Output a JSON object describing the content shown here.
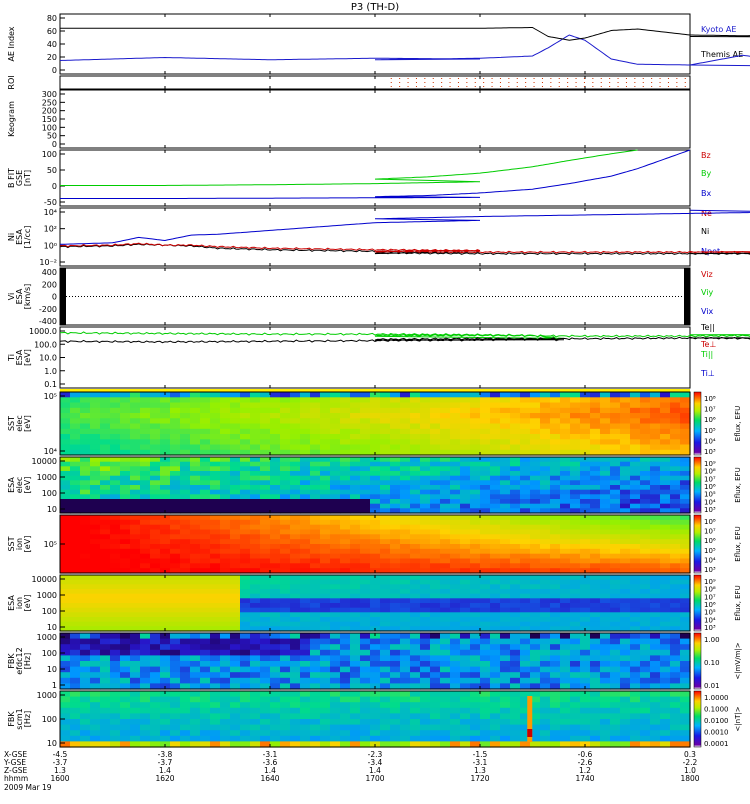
{
  "title": "P3 (TH-D)",
  "colors": {
    "kyoto": "#1a1acc",
    "themis": "#000000",
    "red": "#cc0000",
    "green": "#00cc00",
    "blue": "#0000cc",
    "black": "#000000",
    "roi": "#cc3300"
  },
  "chart_data": [
    {
      "type": "line",
      "panel": "ae",
      "ylabel": "AE Index",
      "yticks": [
        "80",
        "60",
        "40",
        "20",
        "0"
      ],
      "ylim": [
        0,
        80
      ],
      "legend": [
        {
          "name": "Kyoto AE",
          "color": "#1a1acc"
        },
        {
          "name": "Themis AE",
          "color": "#000000"
        }
      ],
      "x": [
        1600,
        1620,
        1640,
        1660,
        1680,
        1700,
        1720,
        1730,
        1733,
        1737,
        1740,
        1745,
        1750,
        1760,
        1770,
        1780,
        1790,
        1800
      ],
      "series": [
        {
          "name": "Kyoto AE",
          "values": [
            18,
            22,
            19,
            21,
            20,
            19,
            21,
            24,
            35,
            52,
            45,
            20,
            13,
            12,
            25,
            16,
            10,
            12
          ]
        },
        {
          "name": "Themis AE",
          "values": [
            61,
            61,
            61,
            61,
            61,
            61,
            61,
            62,
            50,
            45,
            48,
            58,
            60,
            52,
            51,
            52,
            49,
            50
          ]
        }
      ]
    },
    {
      "type": "scatter",
      "panel": "roi",
      "ylabel": "ROI",
      "x_start": 1703,
      "x_end": 1800
    },
    {
      "type": "line",
      "panel": "keogram",
      "ylabel": "Keogram",
      "yticks": [
        "300",
        "250",
        "200",
        "150",
        "100",
        "50",
        "0"
      ],
      "ylim": [
        0,
        300
      ]
    },
    {
      "type": "line",
      "panel": "bfield",
      "ylabel": "B FIT\nGSE\n[nT]",
      "yticks": [
        "100",
        "50",
        "0",
        "-50"
      ],
      "ylim": [
        -50,
        100
      ],
      "legend": [
        {
          "name": "Bz",
          "color": "#cc0000"
        },
        {
          "name": "By",
          "color": "#00cc00"
        },
        {
          "name": "Bx",
          "color": "#0000cc"
        }
      ],
      "x": [
        1600,
        1620,
        1640,
        1660,
        1680,
        1700,
        1710,
        1720,
        1730,
        1737,
        1745,
        1750,
        1760
      ],
      "series": [
        {
          "name": "By",
          "values": [
            5,
            5,
            7,
            10,
            15,
            22,
            28,
            38,
            55,
            72,
            90,
            100,
            null
          ]
        },
        {
          "name": "Bx",
          "values": [
            -30,
            -30,
            -29,
            -28,
            -27,
            -25,
            -22,
            -15,
            -5,
            10,
            30,
            50,
            100
          ]
        }
      ]
    },
    {
      "type": "line",
      "panel": "density",
      "ylabel": "Ni\nESA\n[1/cc]",
      "yticks": [
        "10⁴",
        "10²",
        "10⁰",
        "10⁻²"
      ],
      "ylim": [
        -2.5,
        5
      ],
      "legend": [
        {
          "name": "Ne",
          "color": "#cc0000"
        },
        {
          "name": "Ni",
          "color": "#000000"
        },
        {
          "name": "Npot",
          "color": "#0000cc"
        }
      ],
      "x": [
        1600,
        1610,
        1615,
        1620,
        1625,
        1630,
        1640,
        1650,
        1660,
        1680,
        1700,
        1720,
        1740,
        1760,
        1780,
        1800
      ],
      "series": [
        {
          "name": "Npot",
          "values": [
            0.3,
            0.5,
            1.2,
            0.8,
            1.5,
            1.6,
            2.1,
            2.6,
            3.1,
            3.4,
            3.6,
            3.9,
            4.1,
            4.3,
            4.5,
            4.7
          ]
        },
        {
          "name": "Ni",
          "values": [
            0.0,
            0.1,
            0.3,
            0.2,
            0.1,
            -0.2,
            -0.4,
            -0.5,
            -0.6,
            -0.7,
            -0.8,
            -0.9,
            -0.9,
            -0.9,
            -0.9,
            -0.9
          ]
        },
        {
          "name": "Ne",
          "values": [
            0.1,
            0.2,
            0.4,
            0.2,
            0.2,
            0.0,
            -0.2,
            -0.3,
            -0.4,
            -0.5,
            -0.6,
            -0.7,
            -0.7,
            -0.7,
            -0.7,
            -0.7
          ]
        }
      ]
    },
    {
      "type": "line",
      "panel": "velocity",
      "ylabel": "Vi\nESA\n[km/s]",
      "yticks": [
        "400",
        "200",
        "0",
        "-200",
        "-400"
      ],
      "ylim": [
        -500,
        500
      ],
      "legend": [
        {
          "name": "Viz",
          "color": "#cc0000"
        },
        {
          "name": "Viy",
          "color": "#00cc00"
        },
        {
          "name": "Vix",
          "color": "#0000cc"
        }
      ]
    },
    {
      "type": "line",
      "panel": "temperature",
      "ylabel": "Ti\nESA\n[eV]",
      "yticks": [
        "1000.0",
        "100.0",
        "10.0",
        "1.0",
        "0.1"
      ],
      "ylim": [
        -1.2,
        3.5
      ],
      "legend": [
        {
          "name": "Te||",
          "color": "#000000"
        },
        {
          "name": "Te⊥",
          "color": "#cc0000"
        },
        {
          "name": "Ti||",
          "color": "#00cc00"
        },
        {
          "name": "Ti⊥",
          "color": "#0000cc"
        }
      ],
      "x": [
        1600,
        1620,
        1640,
        1660,
        1680,
        1690,
        1696,
        1700,
        1720,
        1740,
        1760,
        1780,
        1800
      ],
      "series": [
        {
          "name": "Ti||",
          "values": [
            3.05,
            3.0,
            2.95,
            2.95,
            2.9,
            2.85,
            2.6,
            2.85,
            2.85,
            2.8,
            2.8,
            2.85,
            2.9
          ]
        },
        {
          "name": "Te||",
          "values": [
            2.4,
            2.35,
            2.4,
            2.45,
            2.5,
            2.55,
            2.5,
            2.55,
            2.6,
            2.6,
            2.65,
            2.6,
            2.65
          ]
        }
      ]
    },
    {
      "type": "heatmap",
      "panel": "sst_e",
      "ylabel": "SST\nelec\n[eV]",
      "yticks": [
        "10⁵",
        "10⁴"
      ],
      "colorbar_label": "Eflux, EFU",
      "colorbar_ticks": [
        "10⁸",
        "10⁷",
        "10⁶",
        "10⁵",
        "10⁴",
        "10³"
      ]
    },
    {
      "type": "heatmap",
      "panel": "esa_e",
      "ylabel": "ESA\nelec\n[eV]",
      "yticks": [
        "10000",
        "1000",
        "100",
        "10"
      ],
      "colorbar_label": "Eflux, EFU",
      "colorbar_ticks": [
        "10⁹",
        "10⁸",
        "10⁷",
        "10⁶",
        "10⁵",
        "10⁴",
        "10³"
      ]
    },
    {
      "type": "heatmap",
      "panel": "sst_i",
      "ylabel": "SST\nion\n[eV]",
      "yticks": [
        "10⁵"
      ],
      "colorbar_label": "Eflux, EFU",
      "colorbar_ticks": [
        "10⁸",
        "10⁷",
        "10⁶",
        "10⁵",
        "10⁴",
        "10³"
      ]
    },
    {
      "type": "heatmap",
      "panel": "esa_i",
      "ylabel": "ESA\nion\n[eV]",
      "yticks": [
        "10000",
        "1000",
        "100",
        "10"
      ],
      "colorbar_label": "Eflux, EFU",
      "colorbar_ticks": [
        "10⁹",
        "10⁸",
        "10⁷",
        "10⁶",
        "10⁵",
        "10⁴",
        "10³"
      ]
    },
    {
      "type": "heatmap",
      "panel": "fbk_e",
      "ylabel": "FBK\nefdc12\n[Hz]",
      "yticks": [
        "1000",
        "100",
        "10",
        "1"
      ],
      "colorbar_label": "<|mV/m|>",
      "colorbar_ticks": [
        "1.00",
        "0.10",
        "0.01"
      ]
    },
    {
      "type": "heatmap",
      "panel": "fbk_b",
      "ylabel": "FBK\nscm1\n[Hz]",
      "yticks": [
        "1000",
        "100",
        "10"
      ],
      "colorbar_label": "<|nT|>",
      "colorbar_ticks": [
        "1.0000",
        "0.1000",
        "0.0100",
        "0.0010",
        "0.0001"
      ]
    }
  ],
  "xaxis": {
    "row_labels": [
      "X-GSE",
      "Y-GSE",
      "Z-GSE",
      "hhmm",
      "2009 Mar 19"
    ],
    "columns": [
      {
        "x": 1600,
        "vals": [
          "-4.5",
          "-3.7",
          "1.3",
          "1600"
        ]
      },
      {
        "x": 1620,
        "vals": [
          "-3.8",
          "-3.7",
          "1.4",
          "1620"
        ]
      },
      {
        "x": 1640,
        "vals": [
          "-3.1",
          "-3.6",
          "1.4",
          "1640"
        ]
      },
      {
        "x": 1700,
        "vals": [
          "-2.3",
          "-3.4",
          "1.4",
          "1700"
        ]
      },
      {
        "x": 1720,
        "vals": [
          "-1.5",
          "-3.1",
          "1.3",
          "1720"
        ]
      },
      {
        "x": 1740,
        "vals": [
          "-0.6",
          "-2.6",
          "1.2",
          "1740"
        ]
      },
      {
        "x": 1800,
        "vals": [
          "0.3",
          "-2.2",
          "1.0",
          "1800"
        ]
      }
    ]
  }
}
